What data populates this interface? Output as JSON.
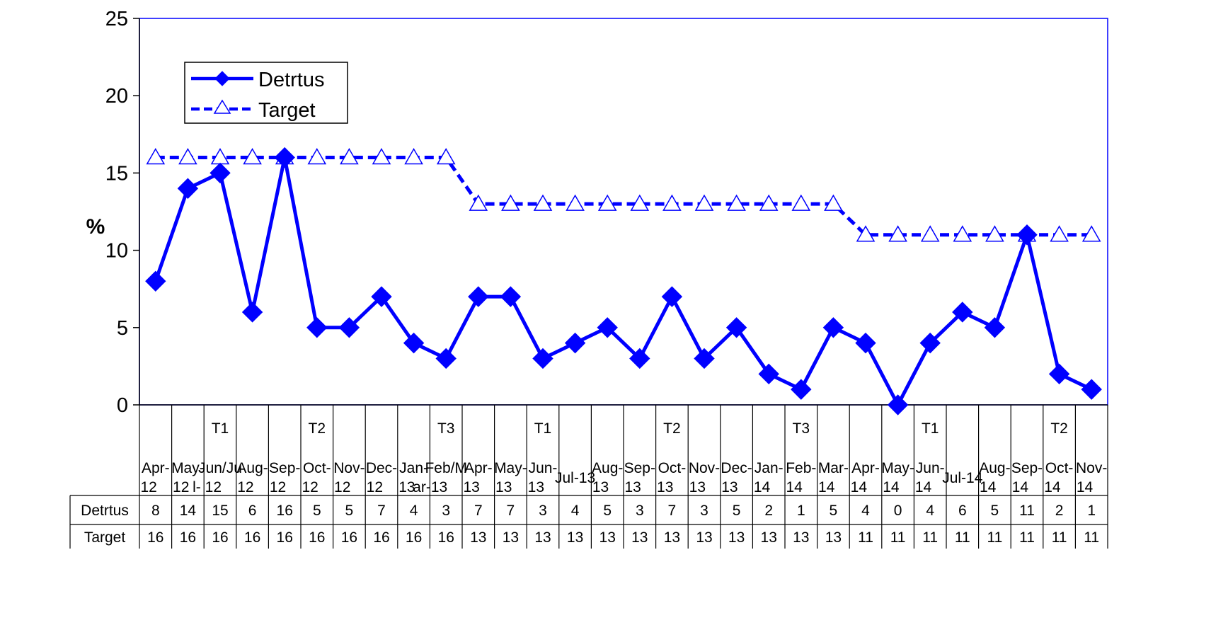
{
  "chart_data": {
    "type": "line",
    "title": "",
    "xlabel": "",
    "ylabel": "%",
    "ylim": [
      0,
      25
    ],
    "yticks": [
      0,
      5,
      10,
      15,
      20,
      25
    ],
    "legend_position": "top-left",
    "grid": false,
    "categories": [
      {
        "line1": "Apr-",
        "line2": "12",
        "group": ""
      },
      {
        "line1": "May-",
        "line2": "12",
        "group": ""
      },
      {
        "line1": "Jun/Ju",
        "line2": "l- 12",
        "group": "T1"
      },
      {
        "line1": "Aug-",
        "line2": "12",
        "group": ""
      },
      {
        "line1": "Sep-",
        "line2": "12",
        "group": ""
      },
      {
        "line1": "Oct-",
        "line2": "12",
        "group": "T2"
      },
      {
        "line1": "Nov-",
        "line2": "12",
        "group": ""
      },
      {
        "line1": "Dec-",
        "line2": "12",
        "group": ""
      },
      {
        "line1": "Jan-",
        "line2": "13",
        "group": ""
      },
      {
        "line1": "Feb/M",
        "line2": "ar-13",
        "group": "T3"
      },
      {
        "line1": "Apr-",
        "line2": "13",
        "group": ""
      },
      {
        "line1": "May-",
        "line2": "13",
        "group": ""
      },
      {
        "line1": "Jun-",
        "line2": "13",
        "group": "T1"
      },
      {
        "line1": "Jul-13",
        "line2": "",
        "group": ""
      },
      {
        "line1": "Aug-",
        "line2": "13",
        "group": ""
      },
      {
        "line1": "Sep-",
        "line2": "13",
        "group": ""
      },
      {
        "line1": "Oct-",
        "line2": "13",
        "group": "T2"
      },
      {
        "line1": "Nov-",
        "line2": "13",
        "group": ""
      },
      {
        "line1": "Dec-",
        "line2": "13",
        "group": ""
      },
      {
        "line1": "Jan-",
        "line2": "14",
        "group": ""
      },
      {
        "line1": "Feb-",
        "line2": "14",
        "group": "T3"
      },
      {
        "line1": "Mar-",
        "line2": "14",
        "group": ""
      },
      {
        "line1": "Apr-",
        "line2": "14",
        "group": ""
      },
      {
        "line1": "May-",
        "line2": "14",
        "group": ""
      },
      {
        "line1": "Jun-",
        "line2": "14",
        "group": "T1"
      },
      {
        "line1": "Jul-14",
        "line2": "",
        "group": ""
      },
      {
        "line1": "Aug-",
        "line2": "14",
        "group": ""
      },
      {
        "line1": "Sep-",
        "line2": "14",
        "group": ""
      },
      {
        "line1": "Oct-",
        "line2": "14",
        "group": "T2"
      },
      {
        "line1": "Nov-",
        "line2": "14",
        "group": ""
      }
    ],
    "series": [
      {
        "name": "Detrtus",
        "style": "solid-diamond",
        "color": "#0000ff",
        "values": [
          8,
          14,
          15,
          6,
          16,
          5,
          5,
          7,
          4,
          3,
          7,
          7,
          3,
          4,
          5,
          3,
          7,
          3,
          5,
          2,
          1,
          5,
          4,
          0,
          4,
          6,
          5,
          11,
          2,
          1
        ]
      },
      {
        "name": "Target",
        "style": "dashed-triangle",
        "color": "#0000ff",
        "values": [
          16,
          16,
          16,
          16,
          16,
          16,
          16,
          16,
          16,
          16,
          13,
          13,
          13,
          13,
          13,
          13,
          13,
          13,
          13,
          13,
          13,
          13,
          11,
          11,
          11,
          11,
          11,
          11,
          11,
          11
        ]
      }
    ]
  }
}
